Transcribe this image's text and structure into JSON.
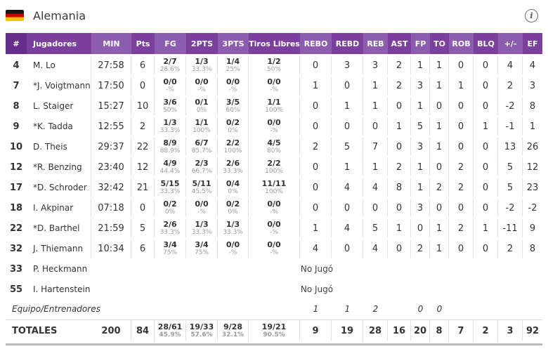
{
  "header": {
    "team": "Alemania",
    "flag_colors": [
      "#141414",
      "#d00000",
      "#f5c400"
    ],
    "info_label": "i"
  },
  "colors": {
    "header_darkest": "#672d8c",
    "header_dark": "#7b3f9d",
    "header_light": "#8c5cae"
  },
  "table": {
    "columns": [
      "#",
      "Jugadores",
      "MIN",
      "Pts",
      "FG",
      "2PTS",
      "3PTS",
      "Tiros Libres",
      "REBO",
      "REBD",
      "REB",
      "AST",
      "FP",
      "TO",
      "ROB",
      "BLQ",
      "+/-",
      "EF"
    ],
    "players": [
      {
        "num": "4",
        "name": "M. Lo",
        "min": "27:58",
        "pts": "6",
        "fg": "2/7",
        "fg_pct": "28.6%",
        "p2": "1/3",
        "p2_pct": "33.3%",
        "p3": "1/4",
        "p3_pct": "25%",
        "ft": "1/2",
        "ft_pct": "50%",
        "rebo": "0",
        "rebd": "3",
        "reb": "3",
        "ast": "2",
        "fp": "1",
        "to": "1",
        "rob": "0",
        "blq": "0",
        "pm": "4",
        "ef": "4"
      },
      {
        "num": "7",
        "name": "*J. Voigtmann",
        "min": "17:50",
        "pts": "0",
        "fg": "0/0",
        "fg_pct": "-%",
        "p2": "0/0",
        "p2_pct": "-%",
        "p3": "0/0",
        "p3_pct": "-%",
        "ft": "0/0",
        "ft_pct": "-%",
        "rebo": "1",
        "rebd": "0",
        "reb": "1",
        "ast": "2",
        "fp": "3",
        "to": "1",
        "rob": "1",
        "blq": "0",
        "pm": "2",
        "ef": "3"
      },
      {
        "num": "8",
        "name": "L. Staiger",
        "min": "15:27",
        "pts": "10",
        "fg": "3/6",
        "fg_pct": "50%",
        "p2": "0/1",
        "p2_pct": "0%",
        "p3": "3/5",
        "p3_pct": "60%",
        "ft": "1/1",
        "ft_pct": "100%",
        "rebo": "0",
        "rebd": "1",
        "reb": "1",
        "ast": "0",
        "fp": "1",
        "to": "0",
        "rob": "0",
        "blq": "0",
        "pm": "-2",
        "ef": "8"
      },
      {
        "num": "9",
        "name": "*K. Tadda",
        "min": "12:55",
        "pts": "2",
        "fg": "1/3",
        "fg_pct": "33.3%",
        "p2": "1/1",
        "p2_pct": "100%",
        "p3": "0/2",
        "p3_pct": "0%",
        "ft": "0/0",
        "ft_pct": "-%",
        "rebo": "0",
        "rebd": "0",
        "reb": "0",
        "ast": "1",
        "fp": "5",
        "to": "1",
        "rob": "0",
        "blq": "1",
        "pm": "-1",
        "ef": "1"
      },
      {
        "num": "10",
        "name": "D. Theis",
        "min": "29:37",
        "pts": "22",
        "fg": "8/9",
        "fg_pct": "88.9%",
        "p2": "6/7",
        "p2_pct": "85.7%",
        "p3": "2/2",
        "p3_pct": "100%",
        "ft": "4/5",
        "ft_pct": "80%",
        "rebo": "2",
        "rebd": "5",
        "reb": "7",
        "ast": "0",
        "fp": "3",
        "to": "1",
        "rob": "0",
        "blq": "0",
        "pm": "13",
        "ef": "26"
      },
      {
        "num": "12",
        "name": "*R. Benzing",
        "min": "23:40",
        "pts": "12",
        "fg": "4/9",
        "fg_pct": "44.4%",
        "p2": "2/3",
        "p2_pct": "66.7%",
        "p3": "2/6",
        "p3_pct": "33.3%",
        "ft": "2/2",
        "ft_pct": "100%",
        "rebo": "0",
        "rebd": "1",
        "reb": "1",
        "ast": "2",
        "fp": "1",
        "to": "0",
        "rob": "2",
        "blq": "0",
        "pm": "5",
        "ef": "12"
      },
      {
        "num": "17",
        "name": "*D. Schroder",
        "min": "32:42",
        "pts": "21",
        "fg": "5/15",
        "fg_pct": "33.3%",
        "p2": "5/11",
        "p2_pct": "45.5%",
        "p3": "0/4",
        "p3_pct": "0%",
        "ft": "11/11",
        "ft_pct": "100%",
        "rebo": "0",
        "rebd": "4",
        "reb": "4",
        "ast": "8",
        "fp": "1",
        "to": "2",
        "rob": "2",
        "blq": "0",
        "pm": "5",
        "ef": "23"
      },
      {
        "num": "18",
        "name": "I. Akpinar",
        "min": "07:18",
        "pts": "0",
        "fg": "0/2",
        "fg_pct": "0%",
        "p2": "0/0",
        "p2_pct": "-%",
        "p3": "0/2",
        "p3_pct": "0%",
        "ft": "0/0",
        "ft_pct": "-%",
        "rebo": "0",
        "rebd": "0",
        "reb": "0",
        "ast": "0",
        "fp": "3",
        "to": "0",
        "rob": "0",
        "blq": "0",
        "pm": "-2",
        "ef": "-2"
      },
      {
        "num": "22",
        "name": "*D. Barthel",
        "min": "21:59",
        "pts": "5",
        "fg": "2/6",
        "fg_pct": "33.3%",
        "p2": "1/3",
        "p2_pct": "33.3%",
        "p3": "1/3",
        "p3_pct": "33.3%",
        "ft": "0/0",
        "ft_pct": "-%",
        "rebo": "1",
        "rebd": "4",
        "reb": "5",
        "ast": "1",
        "fp": "0",
        "to": "1",
        "rob": "2",
        "blq": "1",
        "pm": "-11",
        "ef": "9"
      },
      {
        "num": "32",
        "name": "J. Thiemann",
        "min": "10:34",
        "pts": "6",
        "fg": "3/4",
        "fg_pct": "75%",
        "p2": "3/4",
        "p2_pct": "75%",
        "p3": "0/0",
        "p3_pct": "-%",
        "ft": "0/0",
        "ft_pct": "-%",
        "rebo": "4",
        "rebd": "0",
        "reb": "4",
        "ast": "0",
        "fp": "2",
        "to": "1",
        "rob": "0",
        "blq": "0",
        "pm": "2",
        "ef": "8"
      },
      {
        "num": "33",
        "name": "P. Heckmann",
        "dnp": "No Jugó"
      },
      {
        "num": "55",
        "name": "I. Hartenstein",
        "dnp": "No Jugó"
      }
    ],
    "team_row": {
      "label": "Equipo/Entrenadores",
      "rebo": "1",
      "rebd": "1",
      "reb": "2",
      "fp": "0",
      "to": "0"
    },
    "totals": {
      "label": "TOTALES",
      "min": "200",
      "pts": "84",
      "fg": "28/61",
      "fg_pct": "45.9%",
      "p2": "19/33",
      "p2_pct": "57.6%",
      "p3": "9/28",
      "p3_pct": "32.1%",
      "ft": "19/21",
      "ft_pct": "90.5%",
      "rebo": "9",
      "rebd": "19",
      "reb": "28",
      "ast": "16",
      "fp": "20",
      "to": "8",
      "rob": "7",
      "blq": "2",
      "pm": "3",
      "ef": "92"
    }
  }
}
